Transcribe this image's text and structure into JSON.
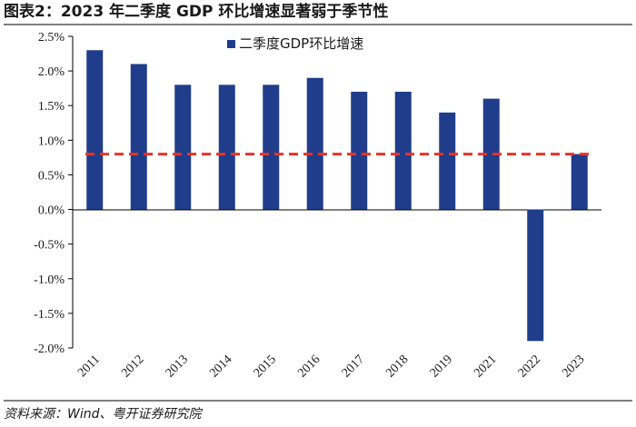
{
  "title": "图表2：2023 年二季度 GDP 环比增速显著弱于季节性",
  "source": "资料来源：Wind、粤开证券研究院",
  "chart_data": {
    "type": "bar",
    "categories": [
      "2011",
      "2012",
      "2013",
      "2014",
      "2015",
      "2016",
      "2017",
      "2018",
      "2019",
      "2021",
      "2022",
      "2023"
    ],
    "series": [
      {
        "name": "二季度GDP环比增速",
        "values": [
          2.3,
          2.1,
          1.8,
          1.8,
          1.8,
          1.9,
          1.7,
          1.7,
          1.4,
          1.6,
          -1.9,
          0.8
        ],
        "color": "#1f3d8a"
      }
    ],
    "reference_line": {
      "value": 0.8,
      "color": "#e8332b",
      "style": "dashed"
    },
    "ylim": [
      -2.0,
      2.5
    ],
    "yticks": [
      "2.5%",
      "2.0%",
      "1.5%",
      "1.0%",
      "0.5%",
      "0.0%",
      "-0.5%",
      "-1.0%",
      "-1.5%",
      "-2.0%"
    ],
    "ytick_values": [
      2.5,
      2.0,
      1.5,
      1.0,
      0.5,
      0.0,
      -0.5,
      -1.0,
      -1.5,
      -2.0
    ],
    "legend_position": "top-center"
  }
}
